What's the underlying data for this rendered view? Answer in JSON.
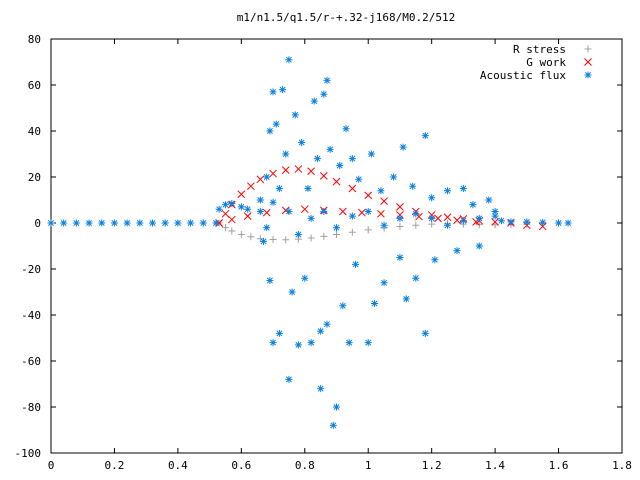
{
  "chart_data": {
    "type": "scatter",
    "title": "m1/n1.5/q1.5/r-+.32-j168/M0.2/512",
    "xlabel": "",
    "ylabel": "",
    "xlim": [
      0,
      1.8
    ],
    "ylim": [
      -100,
      80
    ],
    "x_ticks": [
      0,
      0.2,
      0.4,
      0.6,
      0.8,
      1,
      1.2,
      1.4,
      1.6,
      1.8
    ],
    "x_tick_labels": [
      "0",
      "0.2",
      "0.4",
      "0.6",
      "0.8",
      "1",
      "1.2",
      "1.4",
      "1.6",
      "1.8"
    ],
    "y_ticks": [
      -100,
      -80,
      -60,
      -40,
      -20,
      0,
      20,
      40,
      60,
      80
    ],
    "y_tick_labels": [
      "-100",
      "-80",
      "-60",
      "-40",
      "-20",
      "0",
      "20",
      "40",
      "60",
      "80"
    ],
    "grid": false,
    "legend_position": "top-right",
    "series": [
      {
        "name": "R stress",
        "marker": "plus",
        "color": "#a0a0a0",
        "points": [
          [
            0.53,
            0
          ],
          [
            0.55,
            -2
          ],
          [
            0.57,
            -3.5
          ],
          [
            0.6,
            -5
          ],
          [
            0.63,
            -6
          ],
          [
            0.66,
            -6.8
          ],
          [
            0.7,
            -7.2
          ],
          [
            0.74,
            -7.3
          ],
          [
            0.78,
            -7
          ],
          [
            0.82,
            -6.5
          ],
          [
            0.86,
            -5.8
          ],
          [
            0.9,
            -5
          ],
          [
            0.95,
            -4
          ],
          [
            1.0,
            -3
          ],
          [
            1.05,
            -2.2
          ],
          [
            1.1,
            -1.5
          ],
          [
            1.15,
            -1
          ],
          [
            1.2,
            -0.5
          ],
          [
            1.25,
            -0.3
          ],
          [
            1.3,
            -0.5
          ],
          [
            1.35,
            -0.7
          ],
          [
            1.4,
            -0.8
          ],
          [
            1.45,
            -0.7
          ],
          [
            1.5,
            -0.5
          ],
          [
            1.55,
            -0.3
          ]
        ]
      },
      {
        "name": "G work",
        "marker": "cross",
        "color": "#ff0000",
        "points": [
          [
            0.53,
            0
          ],
          [
            0.55,
            4
          ],
          [
            0.57,
            8
          ],
          [
            0.6,
            12.5
          ],
          [
            0.63,
            16
          ],
          [
            0.66,
            19
          ],
          [
            0.7,
            21.5
          ],
          [
            0.74,
            23
          ],
          [
            0.78,
            23.5
          ],
          [
            0.82,
            22.5
          ],
          [
            0.86,
            20.5
          ],
          [
            0.9,
            18
          ],
          [
            0.95,
            15
          ],
          [
            1.0,
            12
          ],
          [
            1.05,
            9.5
          ],
          [
            1.1,
            7
          ],
          [
            1.15,
            5
          ],
          [
            1.2,
            3.5
          ],
          [
            1.25,
            2.5
          ],
          [
            1.3,
            1.8
          ],
          [
            1.35,
            1
          ],
          [
            1.4,
            0.5
          ],
          [
            1.45,
            0
          ],
          [
            1.5,
            -1
          ],
          [
            1.55,
            -1.5
          ],
          [
            0.53,
            0
          ],
          [
            0.57,
            1.5
          ],
          [
            0.62,
            3
          ],
          [
            0.68,
            4.5
          ],
          [
            0.74,
            5.5
          ],
          [
            0.8,
            6
          ],
          [
            0.86,
            5.5
          ],
          [
            0.92,
            5
          ],
          [
            0.98,
            4.5
          ],
          [
            1.04,
            4
          ],
          [
            1.1,
            3.5
          ],
          [
            1.16,
            2.8
          ],
          [
            1.22,
            2
          ],
          [
            1.28,
            1.2
          ],
          [
            1.34,
            0.5
          ]
        ]
      },
      {
        "name": "Acoustic flux",
        "marker": "star",
        "color": "#0b82e0",
        "points": [
          [
            0.0,
            0
          ],
          [
            0.04,
            0
          ],
          [
            0.08,
            0
          ],
          [
            0.12,
            0
          ],
          [
            0.16,
            0
          ],
          [
            0.2,
            0
          ],
          [
            0.24,
            0
          ],
          [
            0.28,
            0
          ],
          [
            0.32,
            0
          ],
          [
            0.36,
            0
          ],
          [
            0.4,
            0
          ],
          [
            0.44,
            0
          ],
          [
            0.48,
            0
          ],
          [
            0.52,
            0
          ],
          [
            0.53,
            6
          ],
          [
            0.55,
            8
          ],
          [
            0.57,
            8.5
          ],
          [
            0.6,
            7
          ],
          [
            0.62,
            6
          ],
          [
            0.66,
            5
          ],
          [
            0.68,
            -2
          ],
          [
            0.7,
            9
          ],
          [
            0.72,
            15
          ],
          [
            0.75,
            5
          ],
          [
            0.78,
            -5
          ],
          [
            0.82,
            2
          ],
          [
            0.86,
            5
          ],
          [
            0.9,
            -2
          ],
          [
            0.95,
            3
          ],
          [
            1.0,
            5
          ],
          [
            1.05,
            -1
          ],
          [
            1.1,
            2
          ],
          [
            1.15,
            4
          ],
          [
            1.2,
            2
          ],
          [
            1.25,
            -1
          ],
          [
            1.3,
            1
          ],
          [
            1.35,
            2
          ],
          [
            1.4,
            3
          ],
          [
            1.42,
            1
          ],
          [
            1.45,
            0.5
          ],
          [
            1.5,
            0.5
          ],
          [
            1.55,
            0.3
          ],
          [
            1.6,
            0
          ],
          [
            1.63,
            0
          ],
          [
            0.66,
            10
          ],
          [
            0.67,
            -8
          ],
          [
            0.68,
            20
          ],
          [
            0.69,
            -25
          ],
          [
            0.69,
            40
          ],
          [
            0.7,
            57
          ],
          [
            0.7,
            -52
          ],
          [
            0.71,
            43
          ],
          [
            0.72,
            -48
          ],
          [
            0.73,
            58
          ],
          [
            0.74,
            30
          ],
          [
            0.75,
            71
          ],
          [
            0.75,
            -68
          ],
          [
            0.76,
            -30
          ],
          [
            0.77,
            47
          ],
          [
            0.78,
            -53
          ],
          [
            0.79,
            35
          ],
          [
            0.8,
            -24
          ],
          [
            0.81,
            15
          ],
          [
            0.82,
            -52
          ],
          [
            0.83,
            53
          ],
          [
            0.84,
            28
          ],
          [
            0.85,
            -72
          ],
          [
            0.85,
            -47
          ],
          [
            0.86,
            56
          ],
          [
            0.87,
            62
          ],
          [
            0.87,
            -44
          ],
          [
            0.88,
            32
          ],
          [
            0.89,
            -88
          ],
          [
            0.9,
            -80
          ],
          [
            0.91,
            25
          ],
          [
            0.92,
            -36
          ],
          [
            0.93,
            41
          ],
          [
            0.94,
            -52
          ],
          [
            0.95,
            28
          ],
          [
            0.96,
            -18
          ],
          [
            0.97,
            19
          ],
          [
            1.0,
            -52
          ],
          [
            1.01,
            30
          ],
          [
            1.02,
            -35
          ],
          [
            1.04,
            14
          ],
          [
            1.05,
            -26
          ],
          [
            1.08,
            20
          ],
          [
            1.1,
            -15
          ],
          [
            1.11,
            33
          ],
          [
            1.12,
            -33
          ],
          [
            1.14,
            16
          ],
          [
            1.15,
            -24
          ],
          [
            1.18,
            38
          ],
          [
            1.18,
            -48
          ],
          [
            1.2,
            11
          ],
          [
            1.21,
            -16
          ],
          [
            1.25,
            14
          ],
          [
            1.28,
            -12
          ],
          [
            1.3,
            15
          ],
          [
            1.33,
            8
          ],
          [
            1.35,
            -10
          ],
          [
            1.38,
            10
          ],
          [
            1.4,
            5
          ]
        ]
      }
    ]
  }
}
